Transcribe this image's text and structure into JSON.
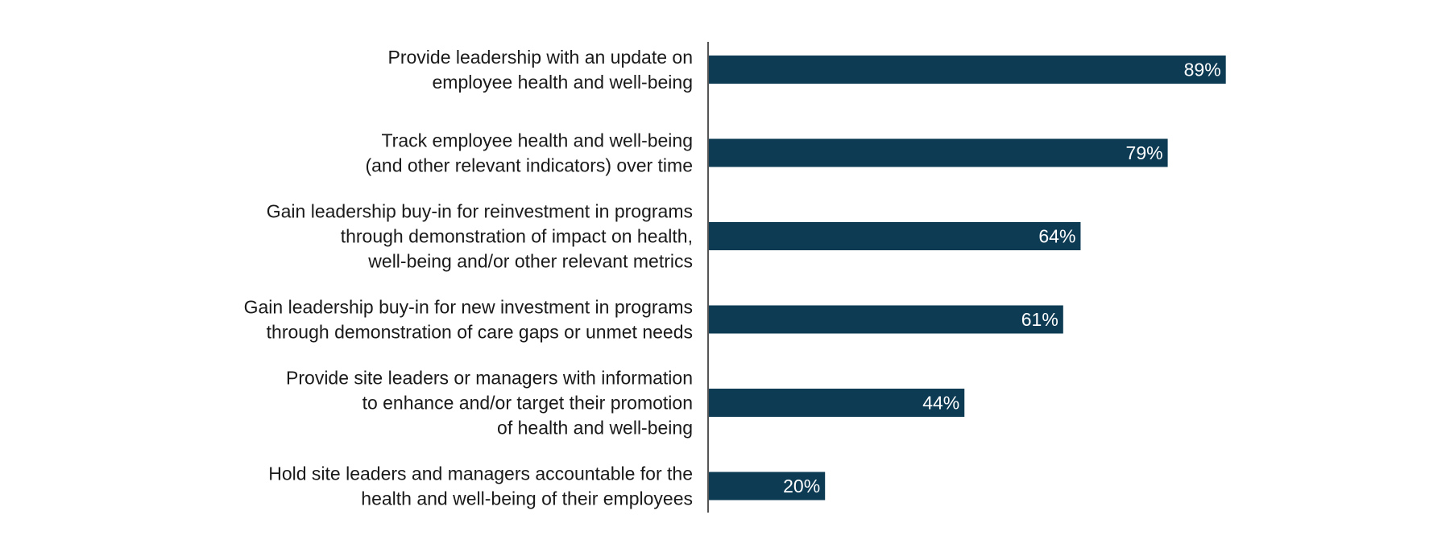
{
  "chart_data": {
    "type": "bar",
    "orientation": "horizontal",
    "categories": [
      "Provide leadership with an update on employee health and well-being",
      "Track employee health and well-being (and other relevant indicators) over time",
      "Gain leadership buy-in for reinvestment in programs through demonstration of impact on health, well-being and/or other relevant metrics",
      "Gain leadership buy-in for new investment in programs through demonstration of care gaps or unmet needs",
      "Provide site leaders or managers with information to enhance and/or target their promotion of health and well-being",
      "Hold site leaders and managers accountable for the health and well-being of their employees"
    ],
    "category_lines": [
      [
        "Provide leadership with an update on",
        "employee health and well-being"
      ],
      [
        "Track employee health and well-being",
        "(and other relevant indicators) over time"
      ],
      [
        "Gain leadership buy-in for reinvestment in programs",
        "through demonstration of impact on health,",
        "well-being and/or other relevant metrics"
      ],
      [
        "Gain leadership buy-in for new investment in programs",
        "through demonstration of care gaps or unmet needs"
      ],
      [
        "Provide site leaders or managers with information",
        "to enhance and/or target their promotion",
        "of health and well-being"
      ],
      [
        "Hold site leaders and managers accountable for the",
        "health and well-being of their employees"
      ]
    ],
    "values": [
      89,
      79,
      64,
      61,
      44,
      20
    ],
    "value_labels": [
      "89%",
      "79%",
      "64%",
      "61%",
      "44%",
      "20%"
    ],
    "xlim": [
      0,
      100
    ],
    "unit": "%",
    "bar_color": "#0d3b54",
    "label_color": "#ffffff",
    "axis_color": "#555555",
    "grid": false,
    "legend": "none",
    "title": "",
    "xlabel": "",
    "ylabel": ""
  }
}
